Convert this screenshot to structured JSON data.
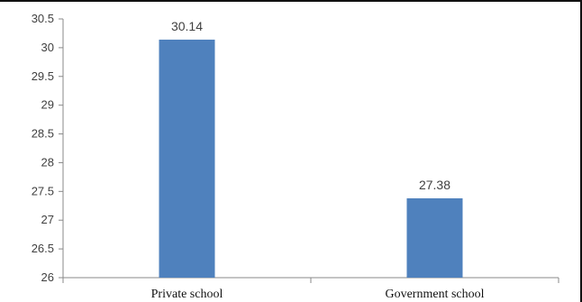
{
  "chart_data": {
    "type": "bar",
    "categories": [
      "Private school",
      "Government school"
    ],
    "values": [
      30.14,
      27.38
    ],
    "data_labels": [
      "30.14",
      "27.38"
    ],
    "ylim": [
      26,
      30.5
    ],
    "yticks": [
      "26",
      "26.5",
      "27",
      "27.5",
      "28",
      "28.5",
      "29",
      "29.5",
      "30",
      "30.5"
    ],
    "bar_color": "#4f81bd",
    "grid": false,
    "legend": "none",
    "title": "",
    "xlabel": "",
    "ylabel": ""
  }
}
